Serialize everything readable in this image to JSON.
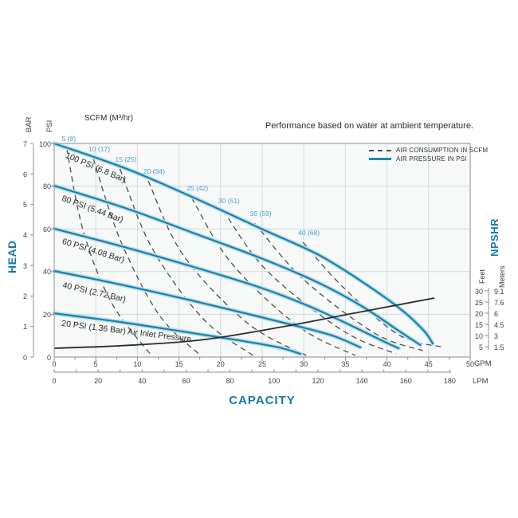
{
  "header": {
    "note": "Performance based on water at ambient temperature.",
    "scfm_axis_title": "SCFM (M³/hr)"
  },
  "legend": {
    "position": "top-right-inside-plot",
    "items": [
      {
        "label": "AIR CONSUMPTION IN SCFM",
        "style": "dashed",
        "color": "#4d4d4d"
      },
      {
        "label": "AIR PRESSURE IN PSI",
        "style": "solid",
        "color": "#2187b0"
      }
    ]
  },
  "axes": {
    "left": {
      "title": "HEAD",
      "bar_label": "BAR",
      "psi_label": "PSI",
      "bar_ticks": [
        "7",
        "6",
        "5",
        "4",
        "3",
        "2",
        "1",
        "0"
      ],
      "psi_ticks": [
        "100",
        "80",
        "60",
        "40",
        "20",
        "0"
      ]
    },
    "bottom": {
      "title": "CAPACITY",
      "gpm_unit": "GPM",
      "lpm_unit": "LPM",
      "gpm_ticks": [
        0,
        5,
        10,
        15,
        20,
        25,
        30,
        35,
        40,
        45,
        50
      ],
      "lpm_ticks": [
        0,
        20,
        40,
        60,
        80,
        100,
        120,
        140,
        160,
        180
      ]
    },
    "right": {
      "title": "NPSHR",
      "feet_label": "Feet",
      "meters_label": "Meters",
      "feet_ticks": [
        "30",
        "25",
        "20",
        "15",
        "10",
        "5"
      ],
      "meters_ticks": [
        "9.1",
        "7.6",
        "6",
        "4.5",
        "3",
        "1.5"
      ]
    }
  },
  "colors": {
    "pressure_curve": "#1f7fa7",
    "pressure_curve_halo": "#b8e0ef",
    "air_consumption_dashed": "#4d4d4d",
    "npshr_curve": "#2b2b2b",
    "axis_title_blue": "#1778a8",
    "scfm_label_blue": "#4aa0c8",
    "grid": "#d4d8d9"
  },
  "chart_data": {
    "type": "line",
    "title": "Performance based on water at ambient temperature.",
    "x_axis": {
      "label": "CAPACITY",
      "units": [
        "GPM",
        "LPM"
      ],
      "gpm_range": [
        0,
        50
      ],
      "lpm_range": [
        0,
        180
      ],
      "grid": true
    },
    "y_axis_left": {
      "label": "HEAD",
      "units": [
        "BAR",
        "PSI"
      ],
      "psi_range": [
        0,
        100
      ],
      "bar_range": [
        0,
        7
      ],
      "grid": true
    },
    "y_axis_right": {
      "label": "NPSHR",
      "units": [
        "Feet",
        "Meters"
      ],
      "feet_ticks": [
        30,
        25,
        20,
        15,
        10,
        5
      ],
      "meters_ticks": [
        9.1,
        7.6,
        6,
        4.5,
        3,
        1.5
      ]
    },
    "pressure_curves": [
      {
        "label": "100 PSI (6.8 Bar)",
        "air_inlet_psi": 100,
        "air_inlet_bar": 6.8,
        "points_gpm_psi": [
          [
            0,
            100
          ],
          [
            8.8,
            88
          ],
          [
            17.4,
            73.5
          ],
          [
            25.1,
            59.7
          ],
          [
            31.8,
            47.8
          ],
          [
            37.5,
            34
          ],
          [
            41.9,
            21.6
          ],
          [
            44.5,
            12
          ],
          [
            45.5,
            6.3
          ]
        ]
      },
      {
        "label": "80 PSI (5.44 Bar)",
        "air_inlet_psi": 80,
        "air_inlet_bar": 5.44,
        "points_gpm_psi": [
          [
            0,
            80.2
          ],
          [
            8.8,
            69.4
          ],
          [
            17.4,
            57.1
          ],
          [
            25.1,
            45.9
          ],
          [
            31.8,
            34.7
          ],
          [
            37.1,
            23.5
          ],
          [
            41.4,
            12.3
          ],
          [
            44,
            5.6
          ]
        ]
      },
      {
        "label": "60 PSI (4.08 Bar)",
        "air_inlet_psi": 60,
        "air_inlet_bar": 4.08,
        "points_gpm_psi": [
          [
            0,
            60.1
          ],
          [
            8.8,
            51.1
          ],
          [
            17.4,
            41.4
          ],
          [
            25.1,
            32.1
          ],
          [
            30.8,
            23.5
          ],
          [
            35.6,
            14.9
          ],
          [
            39.5,
            7.5
          ],
          [
            41.4,
            4.1
          ]
        ]
      },
      {
        "label": "40 PSI (2.72 Bar)",
        "air_inlet_psi": 40,
        "air_inlet_bar": 2.72,
        "points_gpm_psi": [
          [
            0,
            40.3
          ],
          [
            7.9,
            34
          ],
          [
            16.5,
            26.5
          ],
          [
            24.1,
            19.4
          ],
          [
            29.9,
            13.8
          ],
          [
            33.7,
            9.7
          ],
          [
            36.8,
            4.5
          ]
        ]
      },
      {
        "label": "20 PSI (1.36 Bar) Air Inlet Pressure",
        "air_inlet_psi": 20,
        "air_inlet_bar": 1.36,
        "points_gpm_psi": [
          [
            0,
            20.5
          ],
          [
            7.9,
            16.4
          ],
          [
            15.5,
            11.9
          ],
          [
            22.2,
            7.8
          ],
          [
            27,
            4.5
          ],
          [
            29.6,
            1.5
          ]
        ]
      }
    ],
    "air_consumption_curves": [
      {
        "label": "5 (8)",
        "scfm": 5,
        "m3hr": 8,
        "points_gpm_psi": [
          [
            1.5,
            97.8
          ],
          [
            3.5,
            59
          ],
          [
            6.9,
            25.4
          ],
          [
            11.7,
            0.7
          ]
        ]
      },
      {
        "label": "10 (17)",
        "scfm": 10,
        "m3hr": 17,
        "points_gpm_psi": [
          [
            4.7,
            92.9
          ],
          [
            7.9,
            55.2
          ],
          [
            12.6,
            19.8
          ],
          [
            17.6,
            0.7
          ]
        ]
      },
      {
        "label": "15 (25)",
        "scfm": 15,
        "m3hr": 25,
        "points_gpm_psi": [
          [
            7.9,
            88.1
          ],
          [
            11.7,
            51.5
          ],
          [
            17.9,
            17.9
          ],
          [
            23.9,
            0.7
          ]
        ]
      },
      {
        "label": "20 (34)",
        "scfm": 20,
        "m3hr": 34,
        "points_gpm_psi": [
          [
            11.3,
            82.5
          ],
          [
            15.5,
            47.8
          ],
          [
            23.2,
            16
          ],
          [
            30.3,
            0.7
          ]
        ]
      },
      {
        "label": "25 (42)",
        "scfm": 25,
        "m3hr": 42,
        "points_gpm_psi": [
          [
            16.5,
            74.6
          ],
          [
            21.3,
            44
          ],
          [
            29.4,
            14.2
          ],
          [
            36.2,
            0.7
          ]
        ]
      },
      {
        "label": "30 (51)",
        "scfm": 30,
        "m3hr": 51,
        "points_gpm_psi": [
          [
            20.3,
            68.7
          ],
          [
            25.6,
            40.3
          ],
          [
            34.7,
            12.3
          ],
          [
            41.1,
            1.5
          ]
        ]
      },
      {
        "label": "35 (59)",
        "scfm": 35,
        "m3hr": 59,
        "points_gpm_psi": [
          [
            24.1,
            62.7
          ],
          [
            29.9,
            36.6
          ],
          [
            38.5,
            11.2
          ],
          [
            44.3,
            3
          ]
        ]
      },
      {
        "label": "40 (68)",
        "scfm": 40,
        "m3hr": 68,
        "points_gpm_psi": [
          [
            29.9,
            53.7
          ],
          [
            34.7,
            32.8
          ],
          [
            41.4,
            10.4
          ],
          [
            46.9,
            4.5
          ]
        ]
      }
    ],
    "npshr_curve": {
      "name": "NPSHR",
      "points_gpm_feet": [
        [
          0,
          4.3
        ],
        [
          7.9,
          5.4
        ],
        [
          17.4,
          7.9
        ],
        [
          27,
          13.6
        ],
        [
          36.6,
          20.4
        ],
        [
          45.7,
          26.8
        ]
      ]
    }
  }
}
